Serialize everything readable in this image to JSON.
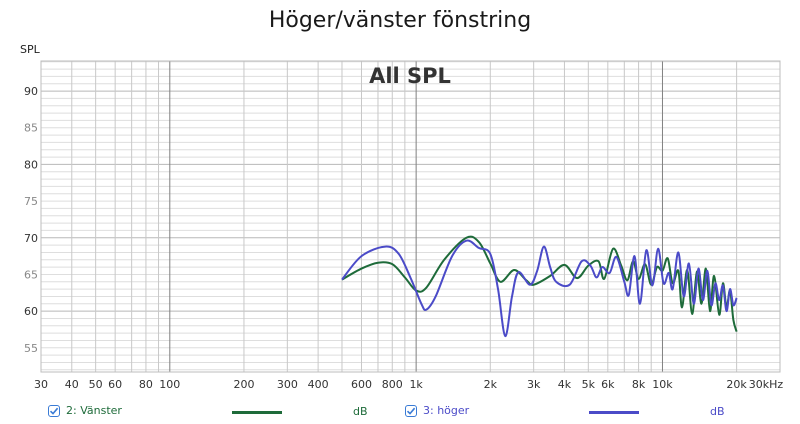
{
  "title": "Höger/vänster fönstring",
  "ylabel": "SPL",
  "annotation": "All SPL",
  "legend": [
    {
      "label": "2: Vänster",
      "unit": "dB",
      "color": "#1e6b3a",
      "checked": true
    },
    {
      "label": "3: höger",
      "unit": "dB",
      "color": "#4b4bc8",
      "checked": true
    }
  ],
  "chart_data": {
    "type": "line",
    "title": "Höger/vänster fönstring",
    "annotation": "All SPL",
    "xlabel": "Hz",
    "ylabel": "SPL",
    "xscale": "log",
    "xlim": [
      30,
      30000
    ],
    "ylim": [
      51.7,
      94.1
    ],
    "grid": true,
    "legend_position": "bottom",
    "x_ticks": [
      30,
      40,
      50,
      60,
      80,
      100,
      200,
      300,
      400,
      600,
      800,
      1000,
      2000,
      3000,
      4000,
      5000,
      6000,
      8000,
      10000,
      20000,
      30000
    ],
    "x_tick_labels": [
      "30",
      "40",
      "50",
      "60",
      "80",
      "100",
      "200",
      "300",
      "400",
      "600",
      "800",
      "1k",
      "2k",
      "3k",
      "4k",
      "5k",
      "6k",
      "8k",
      "10k",
      "20k",
      "30kHz"
    ],
    "y_ticks": [
      55,
      60,
      65,
      70,
      75,
      80,
      85,
      90
    ],
    "y_tick_labels": [
      "55",
      "60",
      "65",
      "70",
      "75",
      "80",
      "85",
      "90"
    ],
    "series": [
      {
        "name": "2: Vänster",
        "unit": "dB",
        "color": "#1e6b3a",
        "points": [
          [
            500,
            64.3
          ],
          [
            600,
            65.8
          ],
          [
            700,
            66.6
          ],
          [
            800,
            66.4
          ],
          [
            900,
            64.6
          ],
          [
            1000,
            62.8
          ],
          [
            1100,
            63.2
          ],
          [
            1300,
            67.0
          ],
          [
            1600,
            70.0
          ],
          [
            1800,
            69.4
          ],
          [
            2000,
            66.5
          ],
          [
            2200,
            64.0
          ],
          [
            2500,
            65.6
          ],
          [
            2800,
            64.2
          ],
          [
            3000,
            63.6
          ],
          [
            3500,
            64.8
          ],
          [
            4000,
            66.3
          ],
          [
            4500,
            64.5
          ],
          [
            5000,
            66.2
          ],
          [
            5500,
            66.8
          ],
          [
            5800,
            64.4
          ],
          [
            6300,
            68.5
          ],
          [
            6800,
            66.2
          ],
          [
            7200,
            64.2
          ],
          [
            7600,
            66.8
          ],
          [
            8000,
            64.4
          ],
          [
            8500,
            66.4
          ],
          [
            9000,
            63.6
          ],
          [
            9500,
            66.0
          ],
          [
            10000,
            65.5
          ],
          [
            10500,
            67.2
          ],
          [
            11000,
            63.8
          ],
          [
            11600,
            65.5
          ],
          [
            12000,
            60.5
          ],
          [
            12600,
            65.6
          ],
          [
            13200,
            59.6
          ],
          [
            13800,
            65.4
          ],
          [
            14400,
            61.0
          ],
          [
            15000,
            65.8
          ],
          [
            15600,
            60.0
          ],
          [
            16200,
            64.8
          ],
          [
            17000,
            59.5
          ],
          [
            17600,
            63.8
          ],
          [
            18200,
            60.5
          ],
          [
            18800,
            62.8
          ],
          [
            19400,
            58.8
          ],
          [
            20000,
            57.2
          ]
        ]
      },
      {
        "name": "3: höger",
        "unit": "dB",
        "color": "#4b4bc8",
        "points": [
          [
            500,
            64.3
          ],
          [
            600,
            67.5
          ],
          [
            750,
            68.8
          ],
          [
            850,
            67.8
          ],
          [
            950,
            64.5
          ],
          [
            1050,
            61.0
          ],
          [
            1100,
            60.2
          ],
          [
            1200,
            62.0
          ],
          [
            1400,
            67.5
          ],
          [
            1600,
            69.6
          ],
          [
            1800,
            68.6
          ],
          [
            2000,
            67.8
          ],
          [
            2150,
            63.0
          ],
          [
            2300,
            56.6
          ],
          [
            2450,
            62.0
          ],
          [
            2600,
            65.3
          ],
          [
            2900,
            63.6
          ],
          [
            3100,
            65.5
          ],
          [
            3300,
            68.8
          ],
          [
            3500,
            66.0
          ],
          [
            3700,
            64.0
          ],
          [
            4200,
            63.6
          ],
          [
            4700,
            66.8
          ],
          [
            5100,
            66.2
          ],
          [
            5400,
            64.6
          ],
          [
            5700,
            66.0
          ],
          [
            6100,
            65.2
          ],
          [
            6500,
            67.4
          ],
          [
            7000,
            64.0
          ],
          [
            7300,
            62.2
          ],
          [
            7700,
            67.5
          ],
          [
            8100,
            61.0
          ],
          [
            8600,
            68.3
          ],
          [
            9100,
            63.5
          ],
          [
            9600,
            68.5
          ],
          [
            10100,
            63.8
          ],
          [
            10600,
            65.2
          ],
          [
            11000,
            63.0
          ],
          [
            11600,
            68.0
          ],
          [
            12200,
            62.0
          ],
          [
            12800,
            66.5
          ],
          [
            13400,
            61.0
          ],
          [
            14000,
            65.8
          ],
          [
            14600,
            61.5
          ],
          [
            15200,
            65.5
          ],
          [
            15800,
            60.8
          ],
          [
            16400,
            63.8
          ],
          [
            17000,
            61.5
          ],
          [
            17600,
            63.5
          ],
          [
            18200,
            60.0
          ],
          [
            18800,
            63.0
          ],
          [
            19400,
            60.8
          ],
          [
            20000,
            61.8
          ]
        ]
      }
    ]
  }
}
